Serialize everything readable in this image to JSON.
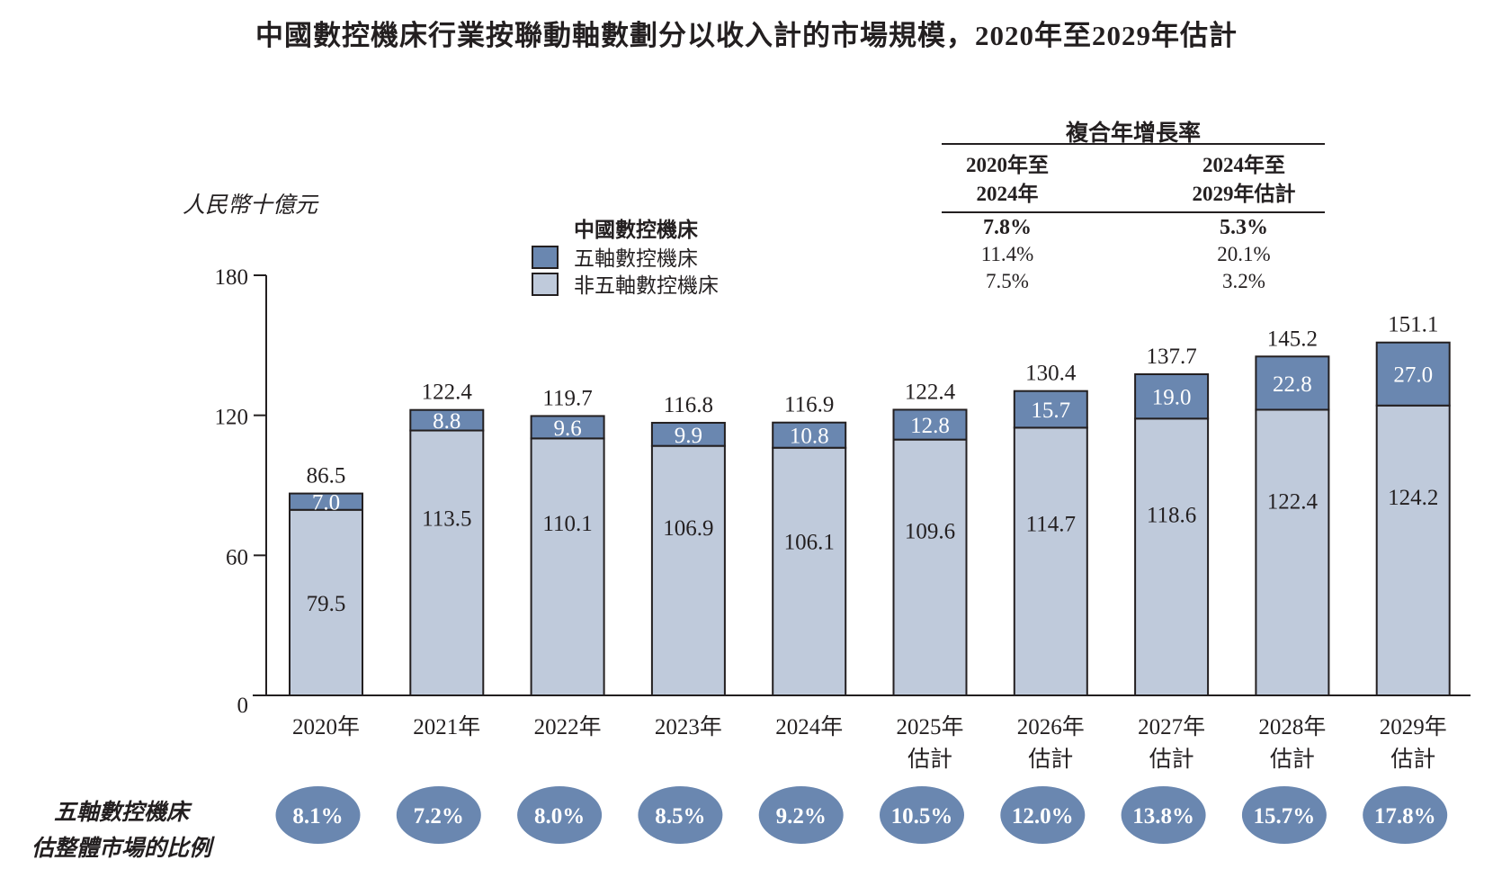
{
  "title": "中國數控機床行業按聯動軸數劃分以收入計的市場規模，2020年至2029年估計",
  "chart_data": {
    "type": "bar",
    "stacked": true,
    "title": "中國數控機床行業按聯動軸數劃分以收入計的市場規模，2020年至2029年估計",
    "ylabel": "人民幣十億元",
    "ylim": [
      0,
      180
    ],
    "yticks": [
      0,
      60,
      120,
      180
    ],
    "grid": false,
    "legend_position": "top-center",
    "categories": [
      [
        "2020年"
      ],
      [
        "2021年"
      ],
      [
        "2022年"
      ],
      [
        "2023年"
      ],
      [
        "2024年"
      ],
      [
        "2025年",
        "估計"
      ],
      [
        "2026年",
        "估計"
      ],
      [
        "2027年",
        "估計"
      ],
      [
        "2028年",
        "估計"
      ],
      [
        "2029年",
        "估計"
      ]
    ],
    "legend_title": "中國數控機床",
    "series": [
      {
        "name": "非五軸數控機床",
        "color": "#bfcadb",
        "values": [
          79.5,
          113.5,
          110.1,
          106.9,
          106.1,
          109.6,
          114.7,
          118.6,
          122.4,
          124.2
        ]
      },
      {
        "name": "五軸數控機床",
        "color": "#6a87b0",
        "values": [
          7.0,
          8.8,
          9.6,
          9.9,
          10.8,
          12.8,
          15.7,
          19.0,
          22.8,
          27.0
        ]
      }
    ],
    "totals": [
      86.5,
      122.4,
      119.7,
      116.8,
      116.9,
      122.4,
      130.4,
      137.7,
      145.2,
      151.1
    ],
    "share": {
      "label": [
        "五軸數控機床",
        "估整體市場的比例"
      ],
      "values": [
        "8.1%",
        "7.2%",
        "8.0%",
        "8.5%",
        "9.2%",
        "10.5%",
        "12.0%",
        "13.8%",
        "15.7%",
        "17.8%"
      ],
      "color": "#6a87b0"
    },
    "cagr": {
      "header": "複合年增長率",
      "columns": [
        [
          "2020年至",
          "2024年"
        ],
        [
          "2024年至",
          "2029年估計"
        ]
      ],
      "rows": [
        {
          "name": "中國數控機床",
          "values": [
            "7.8%",
            "5.3%"
          ],
          "bold": true
        },
        {
          "name": "五軸數控機床",
          "values": [
            "11.4%",
            "20.1%"
          ]
        },
        {
          "name": "非五軸數控機床",
          "values": [
            "7.5%",
            "3.2%"
          ]
        }
      ]
    }
  }
}
